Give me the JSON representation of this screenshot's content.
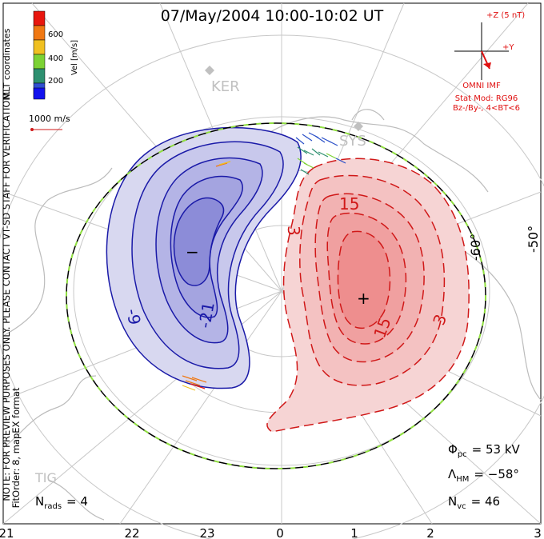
{
  "title": "07/May/2004 10:00-10:02 UT",
  "side_note": "NOTE: FOR PREVIEW PURPOSES ONLY. PLEASE CONTACT VT-SD STAFF FOR VERIFICATION.",
  "fit_note": "FitOrder: 8, mapEX format",
  "coord_label": "MLT coordinates",
  "colorbar": {
    "label": "Vel [m/s]",
    "ticks": [
      "600",
      "400",
      "200"
    ],
    "colors": [
      "#e8160e",
      "#f07812",
      "#f0c020",
      "#7cd234",
      "#2e9070",
      "#3050d0",
      "#1212ee"
    ]
  },
  "vector_scale": "1000 m/s",
  "imf": {
    "z_label": "+Z (5 nT)",
    "y_label": "+Y",
    "source": "OMNI IMF",
    "stat_mod": "Stat Mod: RG96",
    "condition": "Bz-/By-, 4<BT<6"
  },
  "stations": [
    "KER",
    "SYS",
    "TIG"
  ],
  "contour_labels": [
    "-9",
    "-21",
    "3",
    "15",
    "15",
    "3"
  ],
  "potential_markers": {
    "min": "−",
    "max": "+"
  },
  "lat_labels": [
    "-60°",
    "-50°"
  ],
  "stats": {
    "phi_pc": {
      "symbol": "Φ",
      "sub": "pc",
      "value": "= 53 kV"
    },
    "lambda_hm": {
      "symbol": "Λ",
      "sub": "HM",
      "value": "= −58°"
    },
    "n_vc": {
      "symbol": "N",
      "sub": "vc",
      "value": "= 46"
    },
    "n_rads": {
      "symbol": "N",
      "sub": "rads",
      "value": "= 4"
    }
  },
  "mlt_ticks": [
    "21",
    "22",
    "23",
    "0",
    "1",
    "2",
    "3"
  ],
  "colors": {
    "negative": "#1a1aa8",
    "negative_fill": "#c8c8ec",
    "positive": "#d01818",
    "positive_fill": "#f6c8c8",
    "grid": "#c8c8c8",
    "coast": "#bcbcbc",
    "imf": "#e01010"
  }
}
